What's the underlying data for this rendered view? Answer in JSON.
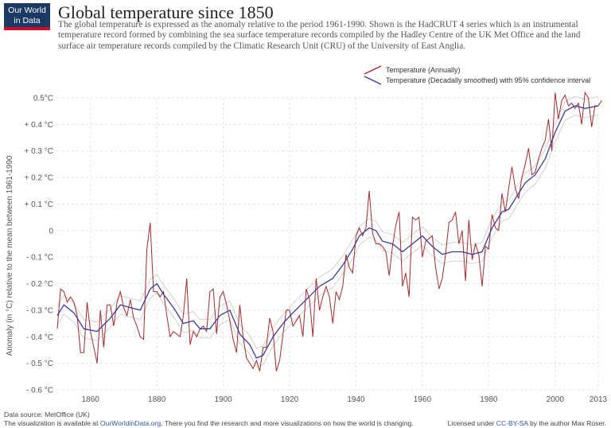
{
  "logo": {
    "line1": "Our World",
    "line2": "in Data"
  },
  "title": "Global temperature since 1850",
  "subtitle": "The global temperature is expressed as the anomaly relative to the period 1961-1990. Shown is the HadCRUT 4 series which is an instrumental temperature record formed by combining the sea surface temperature records compiled by the Hadley Centre of the UK Met Office and the land surface air temperature records compiled by the Climatic Research Unit (CRU) of the University of East Anglia.",
  "footer": {
    "source": "Data source: MetOffice (UK)",
    "available_prefix": "The visualization is available at ",
    "available_link": "OurWorldinData.org",
    "available_suffix": ". There you find the research and more visualizations on how the world is changing.",
    "license_prefix": "Licensed under ",
    "license_link": "CC-BY-SA",
    "license_suffix": " by the author Max Roser."
  },
  "colors": {
    "annual": "#a52a2a",
    "smoothed": "#3b3b9a",
    "confidence": "#d0d0d0",
    "grid": "#e3e3e3"
  },
  "chart_data": {
    "type": "line",
    "xlabel": "",
    "ylabel": "Anomaly (in °C) relative to the mean between 1961-1990",
    "xlim": [
      1850,
      2013
    ],
    "ylim": [
      -0.6,
      0.5
    ],
    "x_ticks": [
      1860,
      1880,
      1900,
      1920,
      1940,
      1960,
      1980,
      2000,
      2013
    ],
    "x_tick_labels": [
      "1860",
      "1880",
      "1900",
      "1920",
      "1940",
      "1960",
      "1980",
      "2000",
      "2013"
    ],
    "y_ticks": [
      0.5,
      0.4,
      0.3,
      0.2,
      0.1,
      0,
      -0.1,
      -0.2,
      -0.3,
      -0.4,
      -0.5,
      -0.6
    ],
    "y_tick_labels": [
      "0.5°C",
      "+ 0.4 °C",
      "+ 0.3 °C",
      "+ 0.2 °C",
      "+ 0.1 °C",
      "0",
      "- 0.1 °C",
      "- 0.2 °C",
      "- 0.3 °C",
      "- 0.4 °C",
      "- 0.5 °C",
      "- 0.6 °C"
    ],
    "grid": true,
    "legend_position": "top-right",
    "series": [
      {
        "name": "Temperature (Annually)",
        "start_year": 1850,
        "values": [
          -0.37,
          -0.22,
          -0.23,
          -0.27,
          -0.25,
          -0.27,
          -0.32,
          -0.46,
          -0.46,
          -0.27,
          -0.38,
          -0.44,
          -0.5,
          -0.3,
          -0.44,
          -0.28,
          -0.28,
          -0.36,
          -0.27,
          -0.23,
          -0.29,
          -0.32,
          -0.26,
          -0.33,
          -0.36,
          -0.4,
          -0.41,
          -0.07,
          0.03,
          -0.23,
          -0.23,
          -0.25,
          -0.23,
          -0.32,
          -0.4,
          -0.38,
          -0.39,
          -0.4,
          -0.32,
          -0.18,
          -0.43,
          -0.38,
          -0.4,
          -0.37,
          -0.36,
          -0.38,
          -0.23,
          -0.22,
          -0.39,
          -0.25,
          -0.23,
          -0.28,
          -0.34,
          -0.41,
          -0.46,
          -0.28,
          -0.4,
          -0.48,
          -0.5,
          -0.52,
          -0.49,
          -0.53,
          -0.44,
          -0.44,
          -0.33,
          -0.38,
          -0.53,
          -0.49,
          -0.39,
          -0.3,
          -0.3,
          -0.36,
          -0.34,
          -0.32,
          -0.4,
          -0.22,
          -0.26,
          -0.4,
          -0.18,
          -0.3,
          -0.25,
          -0.21,
          -0.25,
          -0.35,
          -0.23,
          -0.26,
          -0.21,
          -0.09,
          -0.14,
          -0.16,
          -0.02,
          0.01,
          -0.02,
          0.01,
          0.15,
          -0.01,
          -0.05,
          -0.05,
          -0.06,
          -0.08,
          -0.17,
          -0.06,
          0.02,
          0.07,
          -0.21,
          -0.16,
          -0.25,
          0.05,
          0.04,
          0.05,
          -0.1,
          -0.04,
          -0.03,
          -0.02,
          -0.14,
          -0.22,
          -0.18,
          -0.09,
          0.03,
          0.04,
          0.07,
          -0.05,
          0.0,
          -0.19,
          0.04,
          -0.11,
          -0.05,
          -0.09,
          -0.21,
          -0.06,
          -0.07,
          0.06,
          0.01,
          0.0,
          0.14,
          0.07,
          0.16,
          0.24,
          0.16,
          0.12,
          0.2,
          0.25,
          0.31,
          0.21,
          0.22,
          0.27,
          0.31,
          0.34,
          0.42,
          0.3,
          0.52,
          0.42,
          0.49,
          0.51,
          0.47,
          0.48,
          0.46,
          0.48,
          0.4,
          0.52,
          0.5,
          0.39,
          0.47,
          0.47,
          0.49
        ]
      },
      {
        "name": "Temperature (Decadally smoothed) with 95% confidence interval",
        "years": [
          1850,
          1852,
          1855,
          1858,
          1862,
          1866,
          1869,
          1872,
          1875,
          1878,
          1880,
          1882,
          1885,
          1888,
          1891,
          1893,
          1896,
          1899,
          1902,
          1905,
          1908,
          1910,
          1912,
          1915,
          1918,
          1921,
          1925,
          1929,
          1933,
          1936,
          1939,
          1941,
          1944,
          1946,
          1948,
          1951,
          1954,
          1957,
          1960,
          1963,
          1966,
          1969,
          1972,
          1975,
          1978,
          1981,
          1984,
          1986,
          1988,
          1991,
          1994,
          1997,
          2000,
          2003,
          2006,
          2009,
          2013
        ],
        "values": [
          -0.32,
          -0.28,
          -0.31,
          -0.37,
          -0.38,
          -0.33,
          -0.28,
          -0.29,
          -0.3,
          -0.22,
          -0.2,
          -0.24,
          -0.29,
          -0.35,
          -0.34,
          -0.37,
          -0.37,
          -0.32,
          -0.3,
          -0.39,
          -0.43,
          -0.48,
          -0.47,
          -0.4,
          -0.35,
          -0.31,
          -0.26,
          -0.21,
          -0.18,
          -0.13,
          -0.07,
          -0.02,
          0.01,
          0.0,
          -0.04,
          -0.05,
          -0.08,
          -0.05,
          -0.02,
          -0.06,
          -0.09,
          -0.08,
          -0.08,
          -0.09,
          -0.08,
          0.01,
          0.07,
          0.08,
          0.12,
          0.18,
          0.21,
          0.27,
          0.37,
          0.45,
          0.47,
          0.46,
          0.47
        ]
      }
    ]
  }
}
